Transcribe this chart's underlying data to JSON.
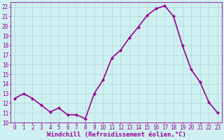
{
  "x": [
    0,
    1,
    2,
    3,
    4,
    5,
    6,
    7,
    8,
    9,
    10,
    11,
    12,
    13,
    14,
    15,
    16,
    17,
    18,
    19,
    20,
    21,
    22,
    23
  ],
  "y": [
    12.5,
    13.0,
    12.5,
    11.8,
    11.1,
    11.5,
    10.8,
    10.8,
    10.4,
    13.0,
    14.4,
    16.7,
    17.5,
    18.8,
    19.9,
    21.1,
    21.8,
    22.1,
    21.0,
    18.0,
    15.5,
    14.2,
    12.1,
    11.0
  ],
  "line_color": "#990099",
  "marker": "D",
  "marker_size": 2.0,
  "xlabel": "Windchill (Refroidissement éolien,°C)",
  "ylim": [
    10,
    22.5
  ],
  "xlim": [
    -0.5,
    23.5
  ],
  "yticks": [
    10,
    11,
    12,
    13,
    14,
    15,
    16,
    17,
    18,
    19,
    20,
    21,
    22
  ],
  "xticks": [
    0,
    1,
    2,
    3,
    4,
    5,
    6,
    7,
    8,
    9,
    10,
    11,
    12,
    13,
    14,
    15,
    16,
    17,
    18,
    19,
    20,
    21,
    22,
    23
  ],
  "background_color": "#cff0f0",
  "grid_color": "#b0d8d8",
  "tick_color": "#990099",
  "label_color": "#990099",
  "linewidth": 1.2,
  "tick_fontsize": 5.5,
  "xlabel_fontsize": 6.5
}
